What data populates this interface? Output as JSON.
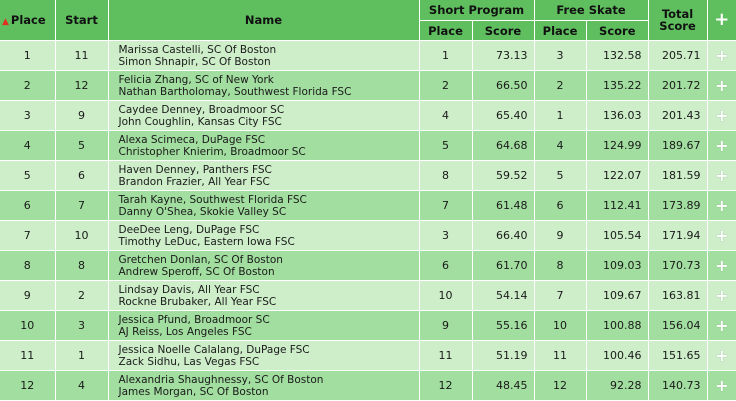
{
  "header": {
    "place": "Place",
    "start": "Start",
    "name": "Name",
    "short_program": "Short Program",
    "free_skate": "Free Skate",
    "total_score": "Total Score",
    "sp_place": "Place",
    "sp_score": "Score",
    "fs_place": "Place",
    "fs_score": "Score",
    "plus": "+",
    "sort_arrow": "▲"
  },
  "rows": [
    {
      "place": "1",
      "start": "11",
      "line1": "Marissa Castelli, SC Of Boston",
      "line2": "Simon Shnapir, SC Of Boston",
      "sp_place": "1",
      "sp_score": "73.13",
      "fs_place": "3",
      "fs_score": "132.58",
      "total": "205.71"
    },
    {
      "place": "2",
      "start": "12",
      "line1": "Felicia Zhang, SC of New York",
      "line2": "Nathan Bartholomay, Southwest Florida FSC",
      "sp_place": "2",
      "sp_score": "66.50",
      "fs_place": "2",
      "fs_score": "135.22",
      "total": "201.72"
    },
    {
      "place": "3",
      "start": "9",
      "line1": "Caydee Denney, Broadmoor SC",
      "line2": "John Coughlin, Kansas City FSC",
      "sp_place": "4",
      "sp_score": "65.40",
      "fs_place": "1",
      "fs_score": "136.03",
      "total": "201.43"
    },
    {
      "place": "4",
      "start": "5",
      "line1": "Alexa Scimeca, DuPage FSC",
      "line2": "Christopher Knierim, Broadmoor SC",
      "sp_place": "5",
      "sp_score": "64.68",
      "fs_place": "4",
      "fs_score": "124.99",
      "total": "189.67"
    },
    {
      "place": "5",
      "start": "6",
      "line1": "Haven Denney, Panthers FSC",
      "line2": "Brandon Frazier, All Year FSC",
      "sp_place": "8",
      "sp_score": "59.52",
      "fs_place": "5",
      "fs_score": "122.07",
      "total": "181.59"
    },
    {
      "place": "6",
      "start": "7",
      "line1": "Tarah Kayne, Southwest Florida FSC",
      "line2": "Danny O'Shea, Skokie Valley SC",
      "sp_place": "7",
      "sp_score": "61.48",
      "fs_place": "6",
      "fs_score": "112.41",
      "total": "173.89"
    },
    {
      "place": "7",
      "start": "10",
      "line1": "DeeDee Leng, DuPage FSC",
      "line2": "Timothy LeDuc, Eastern Iowa FSC",
      "sp_place": "3",
      "sp_score": "66.40",
      "fs_place": "9",
      "fs_score": "105.54",
      "total": "171.94"
    },
    {
      "place": "8",
      "start": "8",
      "line1": "Gretchen Donlan, SC Of Boston",
      "line2": "Andrew Speroff, SC Of Boston",
      "sp_place": "6",
      "sp_score": "61.70",
      "fs_place": "8",
      "fs_score": "109.03",
      "total": "170.73"
    },
    {
      "place": "9",
      "start": "2",
      "line1": "Lindsay Davis, All Year FSC",
      "line2": "Rockne Brubaker, All Year FSC",
      "sp_place": "10",
      "sp_score": "54.14",
      "fs_place": "7",
      "fs_score": "109.67",
      "total": "163.81"
    },
    {
      "place": "10",
      "start": "3",
      "line1": "Jessica Pfund, Broadmoor SC",
      "line2": "AJ Reiss, Los Angeles FSC",
      "sp_place": "9",
      "sp_score": "55.16",
      "fs_place": "10",
      "fs_score": "100.88",
      "total": "156.04"
    },
    {
      "place": "11",
      "start": "1",
      "line1": "Jessica Noelle Calalang, DuPage FSC",
      "line2": "Zack Sidhu, Las Vegas FSC",
      "sp_place": "11",
      "sp_score": "51.19",
      "fs_place": "11",
      "fs_score": "100.46",
      "total": "151.65"
    },
    {
      "place": "12",
      "start": "4",
      "line1": "Alexandria Shaughnessy, SC Of Boston",
      "line2": "James Morgan, SC Of Boston",
      "sp_place": "12",
      "sp_score": "48.45",
      "fs_place": "12",
      "fs_score": "92.28",
      "total": "140.73"
    }
  ],
  "row_action": "+"
}
